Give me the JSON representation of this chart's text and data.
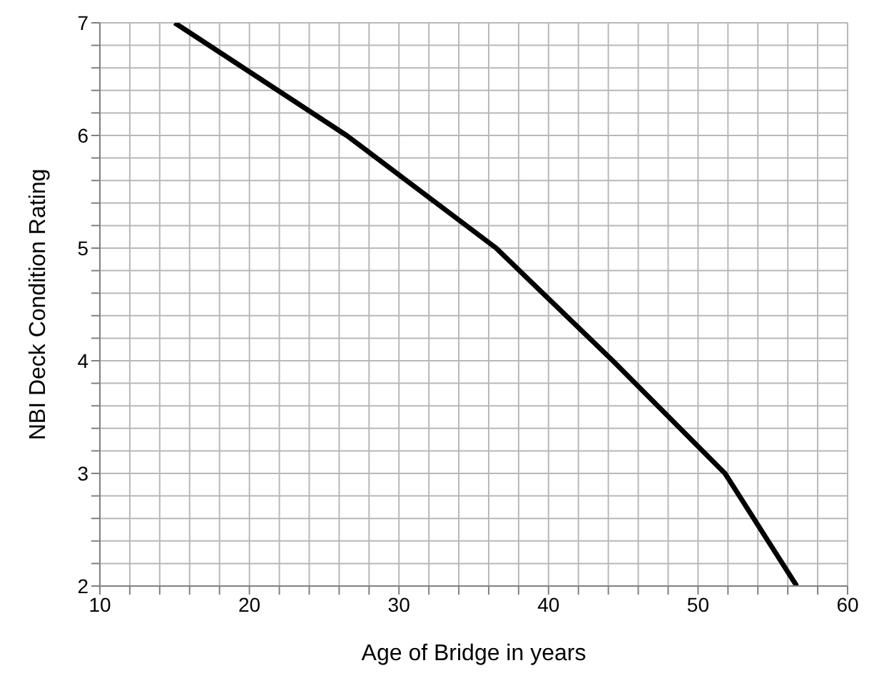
{
  "chart_data": {
    "type": "line",
    "xlabel": "Age of Bridge in years",
    "ylabel": "NBI Deck Condition Rating",
    "x": [
      15,
      26.5,
      36.5,
      44.3,
      51.8,
      56.6
    ],
    "series": [
      {
        "color": "#000000",
        "values": [
          7,
          6,
          5,
          4,
          3,
          2
        ]
      }
    ],
    "xlim": [
      10,
      60
    ],
    "ylim": [
      2,
      7
    ],
    "xticks": [
      10,
      {
        "value": 12,
        "label": null
      },
      {
        "value": 14,
        "label": null
      },
      {
        "value": 16,
        "label": null
      },
      {
        "value": 18,
        "label": null
      },
      20,
      {
        "value": 22,
        "label": null
      },
      {
        "value": 24,
        "label": null
      },
      {
        "value": 26,
        "label": null
      },
      {
        "value": 28,
        "label": null
      },
      30,
      {
        "value": 32,
        "label": null
      },
      {
        "value": 34,
        "label": null
      },
      {
        "value": 36,
        "label": null
      },
      {
        "value": 38,
        "label": null
      },
      40,
      {
        "value": 42,
        "label": null
      },
      {
        "value": 44,
        "label": null
      },
      {
        "value": 46,
        "label": null
      },
      {
        "value": 48,
        "label": null
      },
      50,
      {
        "value": 52,
        "label": null
      },
      {
        "value": 54,
        "label": null
      },
      {
        "value": 56,
        "label": null
      },
      {
        "value": 58,
        "label": null
      },
      60
    ],
    "yticks": [
      2,
      {
        "value": 2.2,
        "label": null
      },
      {
        "value": 2.4,
        "label": null
      },
      {
        "value": 2.6,
        "label": null
      },
      {
        "value": 2.8,
        "label": null
      },
      3,
      {
        "value": 3.2,
        "label": null
      },
      {
        "value": 3.4,
        "label": null
      },
      {
        "value": 3.6,
        "label": null
      },
      {
        "value": 3.8,
        "label": null
      },
      4,
      {
        "value": 4.2,
        "label": null
      },
      {
        "value": 4.4,
        "label": null
      },
      {
        "value": 4.6,
        "label": null
      },
      {
        "value": 4.8,
        "label": null
      },
      5,
      {
        "value": 5.2,
        "label": null
      },
      {
        "value": 5.4,
        "label": null
      },
      {
        "value": 5.6,
        "label": null
      },
      {
        "value": 5.8,
        "label": null
      },
      6,
      {
        "value": 6.2,
        "label": null
      },
      {
        "value": 6.4,
        "label": null
      },
      {
        "value": 6.6,
        "label": null
      },
      {
        "value": 6.8,
        "label": null
      },
      7
    ],
    "grid": true,
    "marker": "none",
    "line_style": "solid"
  }
}
